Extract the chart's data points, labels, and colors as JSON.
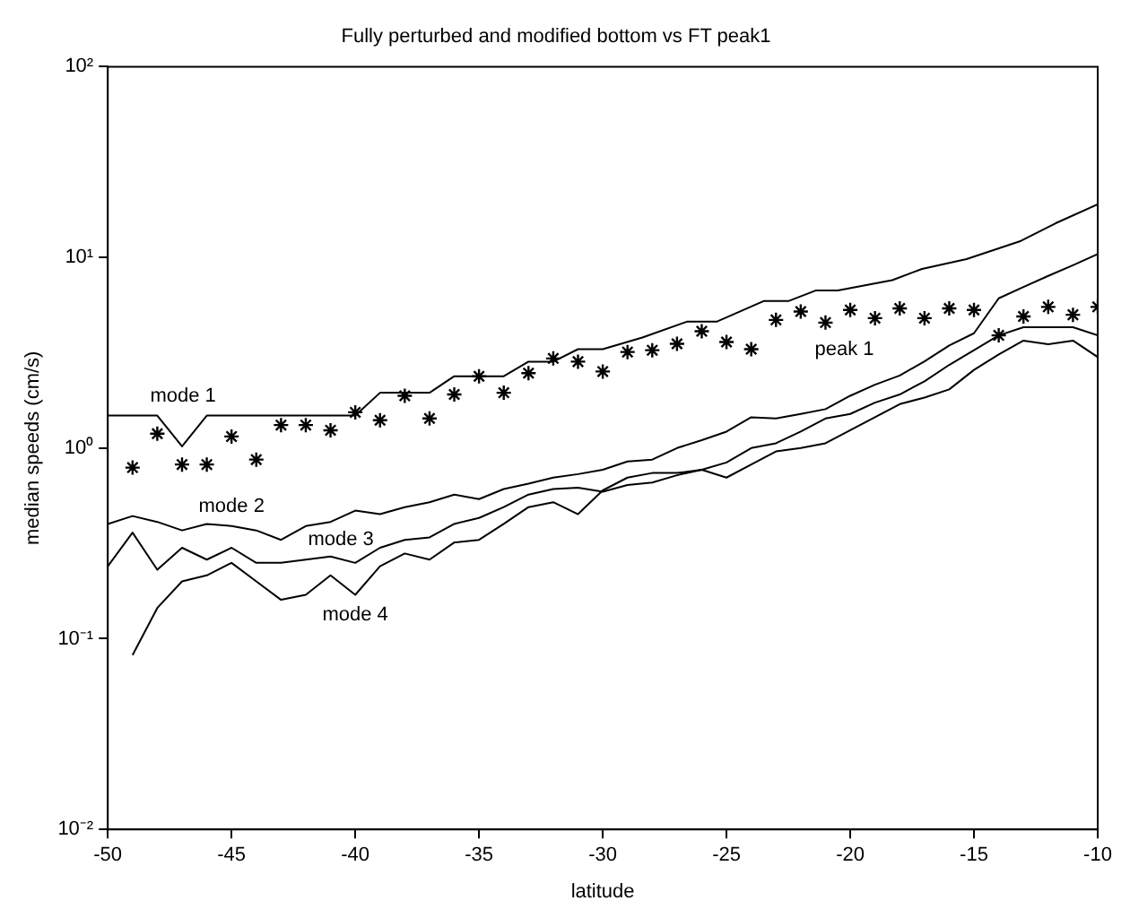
{
  "chart_data": {
    "type": "line",
    "title": "Fully perturbed and modified bottom vs FT peak1",
    "xlabel": "latitude",
    "ylabel": "median speeds (cm/s)",
    "log": "y",
    "grid": false,
    "legend": false,
    "xlim": [
      -50,
      -10
    ],
    "xticks": [
      -50,
      -45,
      -40,
      -35,
      -30,
      -25,
      -20,
      -15,
      -10
    ],
    "ylim": [
      0.01,
      100
    ],
    "yticks": [
      {
        "value": 0.01,
        "label": "10⁻²"
      },
      {
        "value": 0.1,
        "label": "10⁻¹"
      },
      {
        "value": 1,
        "label": "10⁰"
      },
      {
        "value": 10,
        "label": "10¹"
      },
      {
        "value": 100,
        "label": "10²"
      }
    ],
    "series": [
      {
        "name": "mode 1",
        "color": "#000000",
        "marker": "none",
        "line_style": "solid",
        "x": [
          -50,
          -48,
          -47,
          -46,
          -40,
          -39,
          -37,
          -36,
          -34,
          -33,
          -32,
          -31,
          -30,
          -28.4,
          -26.6,
          -25.4,
          -23.5,
          -22.5,
          -21.4,
          -20.5,
          -18.3,
          -17.1,
          -15.3,
          -13.1,
          -11.7,
          -10
        ],
        "values": [
          1.48,
          1.48,
          1.02,
          1.48,
          1.48,
          1.95,
          1.95,
          2.38,
          2.38,
          2.84,
          2.84,
          3.3,
          3.3,
          3.8,
          4.6,
          4.6,
          5.9,
          5.9,
          6.7,
          6.7,
          7.6,
          8.7,
          9.8,
          12.2,
          15.1,
          19
        ]
      },
      {
        "name": "mode 2",
        "color": "#000000",
        "marker": "none",
        "line_style": "solid",
        "x": [
          -50,
          -49,
          -48,
          -47,
          -46,
          -45,
          -44,
          -43,
          -42,
          -41,
          -40,
          -39,
          -38,
          -37,
          -36,
          -35,
          -34,
          -33,
          -32,
          -31,
          -30,
          -29,
          -28,
          -27,
          -26,
          -25,
          -24,
          -23,
          -22,
          -21,
          -20,
          -19,
          -18,
          -17,
          -16,
          -15,
          -14,
          -13,
          -12,
          -11,
          -10
        ],
        "values": [
          0.4,
          0.44,
          0.41,
          0.37,
          0.4,
          0.39,
          0.37,
          0.33,
          0.39,
          0.41,
          0.47,
          0.45,
          0.49,
          0.52,
          0.57,
          0.54,
          0.61,
          0.65,
          0.7,
          0.73,
          0.77,
          0.85,
          0.87,
          1.0,
          1.1,
          1.22,
          1.45,
          1.43,
          1.51,
          1.6,
          1.88,
          2.15,
          2.4,
          2.85,
          3.45,
          4.0,
          6.1,
          7.0,
          8.0,
          9.1,
          10.4
        ]
      },
      {
        "name": "mode 3",
        "color": "#000000",
        "marker": "none",
        "line_style": "solid",
        "x": [
          -50,
          -49,
          -48,
          -47,
          -46,
          -45,
          -44,
          -43,
          -42,
          -41,
          -40,
          -39,
          -38,
          -37,
          -36,
          -35,
          -34,
          -33,
          -32,
          -31,
          -30,
          -29,
          -28,
          -27,
          -26,
          -25,
          -24,
          -23,
          -22,
          -21,
          -20,
          -19,
          -18,
          -17,
          -16,
          -15,
          -14,
          -13,
          -12,
          -11,
          -10
        ],
        "values": [
          0.24,
          0.36,
          0.23,
          0.3,
          0.26,
          0.3,
          0.25,
          0.25,
          0.26,
          0.27,
          0.25,
          0.3,
          0.33,
          0.34,
          0.4,
          0.43,
          0.49,
          0.57,
          0.61,
          0.62,
          0.59,
          0.64,
          0.66,
          0.72,
          0.77,
          0.84,
          1.0,
          1.06,
          1.22,
          1.43,
          1.51,
          1.73,
          1.91,
          2.24,
          2.73,
          3.26,
          3.9,
          4.3,
          4.3,
          4.3,
          3.9
        ]
      },
      {
        "name": "mode 4",
        "color": "#000000",
        "marker": "none",
        "line_style": "solid",
        "x": [
          -49,
          -48,
          -47,
          -46,
          -45,
          -44,
          -43,
          -42,
          -41,
          -40,
          -39,
          -38,
          -37,
          -36,
          -35,
          -34,
          -33,
          -32,
          -31,
          -30,
          -29,
          -28,
          -27,
          -26,
          -25,
          -24,
          -23,
          -22,
          -21,
          -20,
          -19,
          -18,
          -17,
          -16,
          -15,
          -14,
          -13,
          -12,
          -11,
          -10
        ],
        "values": [
          0.082,
          0.145,
          0.2,
          0.215,
          0.25,
          0.2,
          0.16,
          0.17,
          0.215,
          0.17,
          0.24,
          0.28,
          0.26,
          0.32,
          0.33,
          0.4,
          0.49,
          0.52,
          0.45,
          0.6,
          0.7,
          0.74,
          0.74,
          0.77,
          0.7,
          0.82,
          0.96,
          1.0,
          1.06,
          1.24,
          1.45,
          1.7,
          1.84,
          2.03,
          2.57,
          3.1,
          3.66,
          3.5,
          3.66,
          3.0
        ]
      },
      {
        "name": "peak 1",
        "type": "scatter",
        "color": "#000000",
        "marker": "cross",
        "x": [
          -49,
          -48,
          -47,
          -46,
          -45,
          -44,
          -43,
          -42,
          -41,
          -40,
          -39,
          -38,
          -37,
          -36,
          -35,
          -34,
          -33,
          -32,
          -31,
          -30,
          -29,
          -28,
          -27,
          -26,
          -25,
          -24,
          -23,
          -22,
          -21,
          -20,
          -19,
          -18,
          -17,
          -16,
          -15,
          -14,
          -13,
          -12,
          -11,
          -10
        ],
        "values": [
          0.79,
          1.19,
          0.82,
          0.82,
          1.15,
          0.87,
          1.32,
          1.32,
          1.24,
          1.54,
          1.4,
          1.88,
          1.43,
          1.91,
          2.38,
          1.95,
          2.47,
          2.95,
          2.84,
          2.52,
          3.19,
          3.26,
          3.52,
          4.1,
          3.6,
          3.3,
          4.7,
          5.2,
          4.55,
          5.3,
          4.8,
          5.4,
          4.8,
          5.4,
          5.3,
          3.9,
          4.9,
          5.5,
          5.0,
          5.5
        ]
      }
    ]
  }
}
